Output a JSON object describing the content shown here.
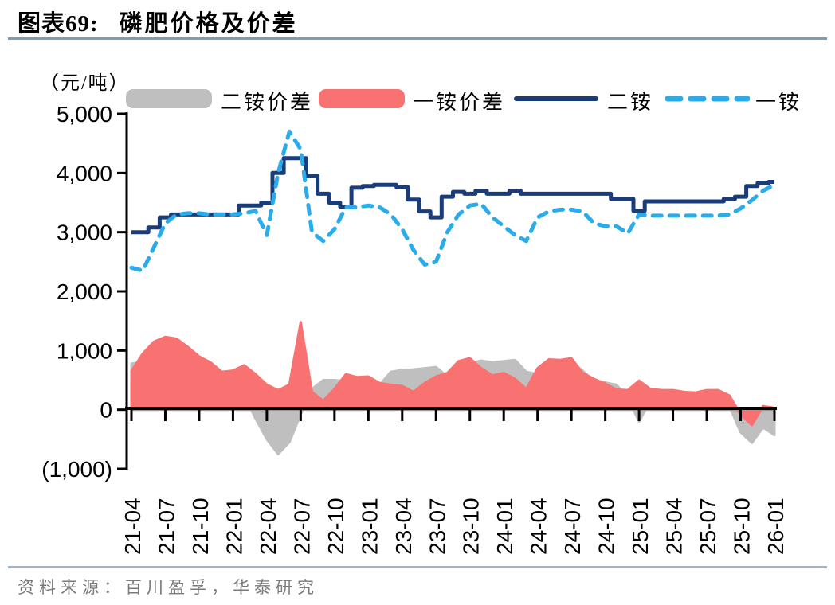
{
  "title": {
    "prefix": "图表69:",
    "text": "磷肥价格及价差"
  },
  "unit_label": "（元/吨）",
  "legend": {
    "items": [
      {
        "label": "二铵价差",
        "swatch": "gray-area"
      },
      {
        "label": "一铵价差",
        "swatch": "red-area"
      },
      {
        "label": "二铵",
        "swatch": "navy-solid-line"
      },
      {
        "label": "一铵",
        "swatch": "sky-dashed-line"
      }
    ]
  },
  "source": {
    "text": "资料来源：百川盈孚，华泰研究"
  },
  "colors": {
    "navy": "#1a3c78",
    "sky": "#29ace9",
    "red": "#f87272",
    "gray": "#bfbfbf",
    "axis": "#000000",
    "rule_top": "#7e9cba",
    "rule_bottom": "#9fb4c9",
    "source_text": "#7a7a7a"
  },
  "chart_data": {
    "type": "combo",
    "title": "磷肥价格及价差",
    "ylabel": "（元/吨）",
    "ylim": [
      -1000,
      5000
    ],
    "y_tick_step": 1000,
    "y_tick_labels": [
      "5,000",
      "4,000",
      "3,000",
      "2,000",
      "1,000",
      "0",
      "(1,000)"
    ],
    "x_tick_every": 3,
    "grid": false,
    "legend_position": "top",
    "categories": [
      "21-04",
      "21-05",
      "21-06",
      "21-07",
      "21-08",
      "21-09",
      "21-10",
      "21-11",
      "21-12",
      "22-01",
      "22-02",
      "22-03",
      "22-04",
      "22-05",
      "22-06",
      "22-07",
      "22-08",
      "22-09",
      "22-10",
      "22-11",
      "22-12",
      "23-01",
      "23-02",
      "23-03",
      "23-04",
      "23-05",
      "23-06",
      "23-07",
      "23-08",
      "23-09",
      "23-10",
      "23-11",
      "23-12",
      "24-01",
      "24-02",
      "24-03",
      "24-04",
      "24-05",
      "24-06",
      "24-07",
      "24-08",
      "24-09",
      "24-10",
      "24-11",
      "24-12",
      "25-01",
      "25-02",
      "25-03",
      "25-04",
      "25-05",
      "25-06",
      "25-07",
      "25-08",
      "25-09",
      "25-10",
      "25-11",
      "25-12",
      "26-01"
    ],
    "series": [
      {
        "name": "二铵价差",
        "type": "area",
        "color": "#bfbfbf",
        "values": [
          780,
          800,
          700,
          650,
          600,
          550,
          500,
          480,
          420,
          380,
          250,
          -150,
          -500,
          -750,
          -550,
          -80,
          350,
          500,
          500,
          480,
          470,
          520,
          420,
          640,
          670,
          680,
          700,
          720,
          560,
          700,
          780,
          830,
          800,
          820,
          840,
          640,
          600,
          800,
          820,
          800,
          660,
          480,
          460,
          420,
          200,
          -200,
          150,
          250,
          250,
          230,
          220,
          250,
          260,
          60,
          -380,
          -560,
          -300,
          -430
        ]
      },
      {
        "name": "一铵价差",
        "type": "area",
        "color": "#f87272",
        "values": [
          650,
          950,
          1150,
          1230,
          1200,
          1060,
          900,
          800,
          640,
          660,
          750,
          600,
          420,
          330,
          420,
          1480,
          300,
          150,
          350,
          600,
          550,
          560,
          450,
          420,
          400,
          300,
          450,
          560,
          620,
          820,
          870,
          700,
          580,
          620,
          520,
          350,
          700,
          850,
          840,
          870,
          620,
          520,
          440,
          340,
          330,
          490,
          350,
          330,
          330,
          300,
          290,
          330,
          330,
          240,
          -80,
          -260,
          60,
          30
        ]
      },
      {
        "name": "二铵",
        "type": "line",
        "style": "solid",
        "interpolation": "step",
        "color": "#1a3c78",
        "values": [
          3000,
          3000,
          3080,
          3250,
          3300,
          3300,
          3300,
          3300,
          3300,
          3300,
          3450,
          3450,
          3500,
          4000,
          4250,
          4250,
          3950,
          3650,
          3500,
          3430,
          3750,
          3780,
          3800,
          3800,
          3760,
          3550,
          3350,
          3250,
          3600,
          3680,
          3650,
          3700,
          3650,
          3650,
          3700,
          3650,
          3650,
          3650,
          3650,
          3650,
          3650,
          3650,
          3650,
          3560,
          3560,
          3360,
          3520,
          3520,
          3520,
          3520,
          3520,
          3520,
          3520,
          3560,
          3600,
          3780,
          3830,
          3850
        ]
      },
      {
        "name": "一铵",
        "type": "line",
        "style": "dashed",
        "interpolation": "linear",
        "color": "#29ace9",
        "values": [
          2400,
          2350,
          2750,
          3150,
          3300,
          3320,
          3320,
          3300,
          3300,
          3300,
          3320,
          3360,
          2950,
          4000,
          4700,
          4400,
          3000,
          2850,
          3050,
          3420,
          3420,
          3450,
          3420,
          3300,
          3050,
          2700,
          2450,
          2500,
          3000,
          3300,
          3450,
          3480,
          3250,
          3100,
          2950,
          2850,
          3250,
          3350,
          3380,
          3380,
          3350,
          3150,
          3100,
          3100,
          2980,
          3300,
          3280,
          3280,
          3280,
          3280,
          3280,
          3280,
          3280,
          3300,
          3400,
          3540,
          3700,
          3800
        ]
      }
    ]
  }
}
